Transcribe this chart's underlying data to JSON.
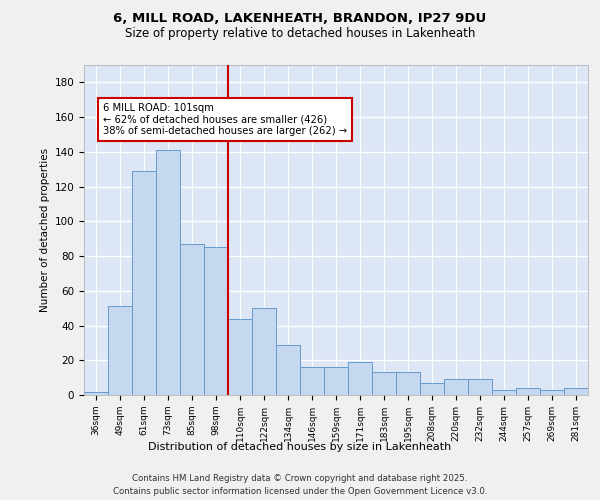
{
  "title1": "6, MILL ROAD, LAKENHEATH, BRANDON, IP27 9DU",
  "title2": "Size of property relative to detached houses in Lakenheath",
  "xlabel": "Distribution of detached houses by size in Lakenheath",
  "ylabel": "Number of detached properties",
  "categories": [
    "36sqm",
    "49sqm",
    "61sqm",
    "73sqm",
    "85sqm",
    "98sqm",
    "110sqm",
    "122sqm",
    "134sqm",
    "146sqm",
    "159sqm",
    "171sqm",
    "183sqm",
    "195sqm",
    "208sqm",
    "220sqm",
    "232sqm",
    "244sqm",
    "257sqm",
    "269sqm",
    "281sqm"
  ],
  "values": [
    2,
    51,
    129,
    141,
    87,
    85,
    44,
    50,
    29,
    16,
    16,
    19,
    13,
    13,
    7,
    9,
    9,
    3,
    4,
    3,
    4
  ],
  "bar_color": "#c5d8f0",
  "bar_edge_color": "#6699cc",
  "vline_x": 5.5,
  "vline_color": "#cc0000",
  "annotation_text": "6 MILL ROAD: 101sqm\n← 62% of detached houses are smaller (426)\n38% of semi-detached houses are larger (262) →",
  "annotation_box_color": "#ffffff",
  "annotation_box_edge": "#cc0000",
  "footer1": "Contains HM Land Registry data © Crown copyright and database right 2025.",
  "footer2": "Contains public sector information licensed under the Open Government Licence v3.0.",
  "fig_bg_color": "#f0f0f0",
  "plot_bg_color": "#dce6f5",
  "ylim": [
    0,
    190
  ],
  "yticks": [
    0,
    20,
    40,
    60,
    80,
    100,
    120,
    140,
    160,
    180
  ]
}
